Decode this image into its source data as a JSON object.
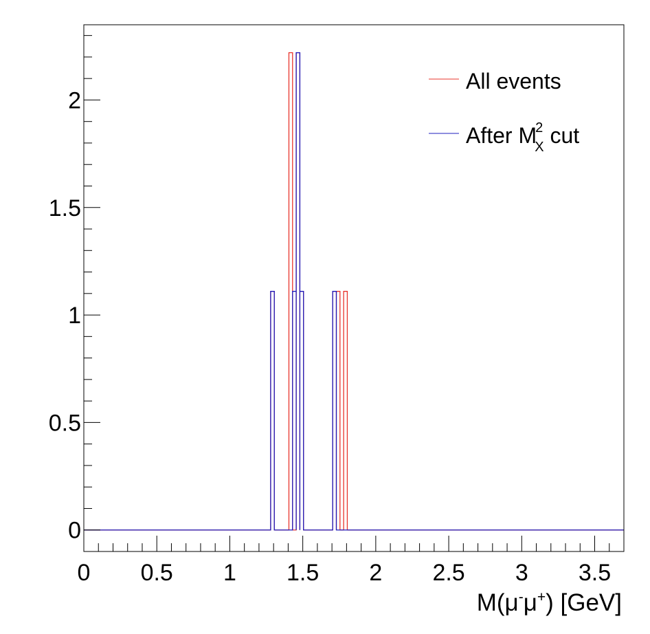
{
  "chart_data": {
    "type": "histogram",
    "title": "",
    "xlabel": {
      "text": "M(μ⁻μ⁺) [GeV]",
      "parts": [
        "M(",
        "μ",
        "-",
        "μ",
        "+",
        ") [GeV]"
      ]
    },
    "ylabel": "",
    "xlim": [
      0,
      3.7
    ],
    "ylim": [
      -0.1,
      2.35
    ],
    "x_ticks": [
      0,
      0.5,
      1,
      1.5,
      2,
      2.5,
      3,
      3.5
    ],
    "x_tick_labels": [
      "0",
      "0.5",
      "1",
      "1.5",
      "2",
      "2.5",
      "3",
      "3.5"
    ],
    "y_ticks": [
      0,
      0.5,
      1,
      1.5,
      2
    ],
    "y_tick_labels": [
      "0",
      "0.5",
      "1",
      "1.5",
      "2"
    ],
    "grid": false,
    "legend_position": "top-right",
    "legend": [
      {
        "label": "All events",
        "color": "#e8342c"
      },
      {
        "label": "After M",
        "sup": "2",
        "sub": "X",
        "suffix": " cut",
        "color": "#1d1dbe"
      }
    ],
    "series": [
      {
        "name": "All events",
        "color": "#e8342c",
        "bins": [
          {
            "x0": 1.28,
            "x1": 1.305,
            "y": 1.11
          },
          {
            "x0": 1.405,
            "x1": 1.43,
            "y": 2.22
          },
          {
            "x0": 1.455,
            "x1": 1.48,
            "y": 2.22
          },
          {
            "x0": 1.48,
            "x1": 1.505,
            "y": 1.11
          },
          {
            "x0": 1.705,
            "x1": 1.73,
            "y": 1.11
          },
          {
            "x0": 1.73,
            "x1": 1.755,
            "y": 1.11
          },
          {
            "x0": 1.78,
            "x1": 1.805,
            "y": 1.11
          }
        ]
      },
      {
        "name": "After M_X^2 cut",
        "color": "#1d1dbe",
        "bins": [
          {
            "x0": 1.28,
            "x1": 1.305,
            "y": 1.11
          },
          {
            "x0": 1.43,
            "x1": 1.455,
            "y": 1.11
          },
          {
            "x0": 1.455,
            "x1": 1.48,
            "y": 2.22
          },
          {
            "x0": 1.48,
            "x1": 1.505,
            "y": 1.11
          },
          {
            "x0": 1.705,
            "x1": 1.73,
            "y": 1.11
          }
        ]
      }
    ]
  }
}
